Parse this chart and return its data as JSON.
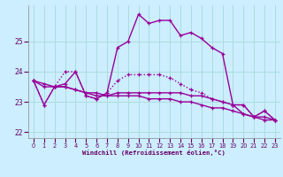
{
  "xlabel": "Windchill (Refroidissement éolien,°C)",
  "xlim": [
    -0.5,
    23.5
  ],
  "ylim": [
    21.8,
    26.2
  ],
  "yticks": [
    22,
    23,
    24,
    25
  ],
  "xticks": [
    0,
    1,
    2,
    3,
    4,
    5,
    6,
    7,
    8,
    9,
    10,
    11,
    12,
    13,
    14,
    15,
    16,
    17,
    18,
    19,
    20,
    21,
    22,
    23
  ],
  "bg_color": "#cceeff",
  "grid_color": "#aadddd",
  "line_color": "#990099",
  "series": [
    {
      "x": [
        0,
        1,
        2,
        3,
        4,
        5,
        6,
        7,
        8,
        9,
        10,
        11,
        12,
        13,
        14,
        15,
        16,
        17,
        18,
        19,
        20,
        21,
        22,
        23
      ],
      "y": [
        23.7,
        22.9,
        23.5,
        23.6,
        24.0,
        23.2,
        23.1,
        23.3,
        24.8,
        25.0,
        25.9,
        25.6,
        25.7,
        25.7,
        25.2,
        25.3,
        25.1,
        24.8,
        24.6,
        22.9,
        22.9,
        22.5,
        22.7,
        22.4
      ]
    },
    {
      "x": [
        0,
        1,
        2,
        3,
        4,
        5,
        6,
        7,
        8,
        9,
        10,
        11,
        12,
        13,
        14,
        15,
        16,
        17,
        18,
        19,
        20,
        21,
        22,
        23
      ],
      "y": [
        23.7,
        23.6,
        23.5,
        23.5,
        23.4,
        23.3,
        23.3,
        23.2,
        23.2,
        23.2,
        23.2,
        23.1,
        23.1,
        23.1,
        23.0,
        23.0,
        22.9,
        22.8,
        22.8,
        22.7,
        22.6,
        22.5,
        22.4,
        22.4
      ]
    },
    {
      "x": [
        0,
        1,
        2,
        3,
        4,
        5,
        6,
        7,
        8,
        9,
        10,
        11,
        12,
        13,
        14,
        15,
        16,
        17,
        18,
        19,
        20,
        21,
        22,
        23
      ],
      "y": [
        23.7,
        23.5,
        23.5,
        23.5,
        23.4,
        23.3,
        23.2,
        23.2,
        23.3,
        23.3,
        23.3,
        23.3,
        23.3,
        23.3,
        23.3,
        23.2,
        23.2,
        23.1,
        23.0,
        22.9,
        22.6,
        22.5,
        22.5,
        22.4
      ]
    },
    {
      "x": [
        0,
        1,
        2,
        3,
        4,
        5,
        6,
        7,
        8,
        9,
        10,
        11,
        12,
        13,
        14,
        15,
        16,
        17,
        18,
        19,
        20,
        21,
        22,
        23
      ],
      "y": [
        23.7,
        22.9,
        23.5,
        24.0,
        24.0,
        23.2,
        23.1,
        23.3,
        23.7,
        23.9,
        23.9,
        23.9,
        23.9,
        23.8,
        23.6,
        23.4,
        23.3,
        23.1,
        23.0,
        22.9,
        22.9,
        22.5,
        22.7,
        22.4
      ]
    }
  ]
}
